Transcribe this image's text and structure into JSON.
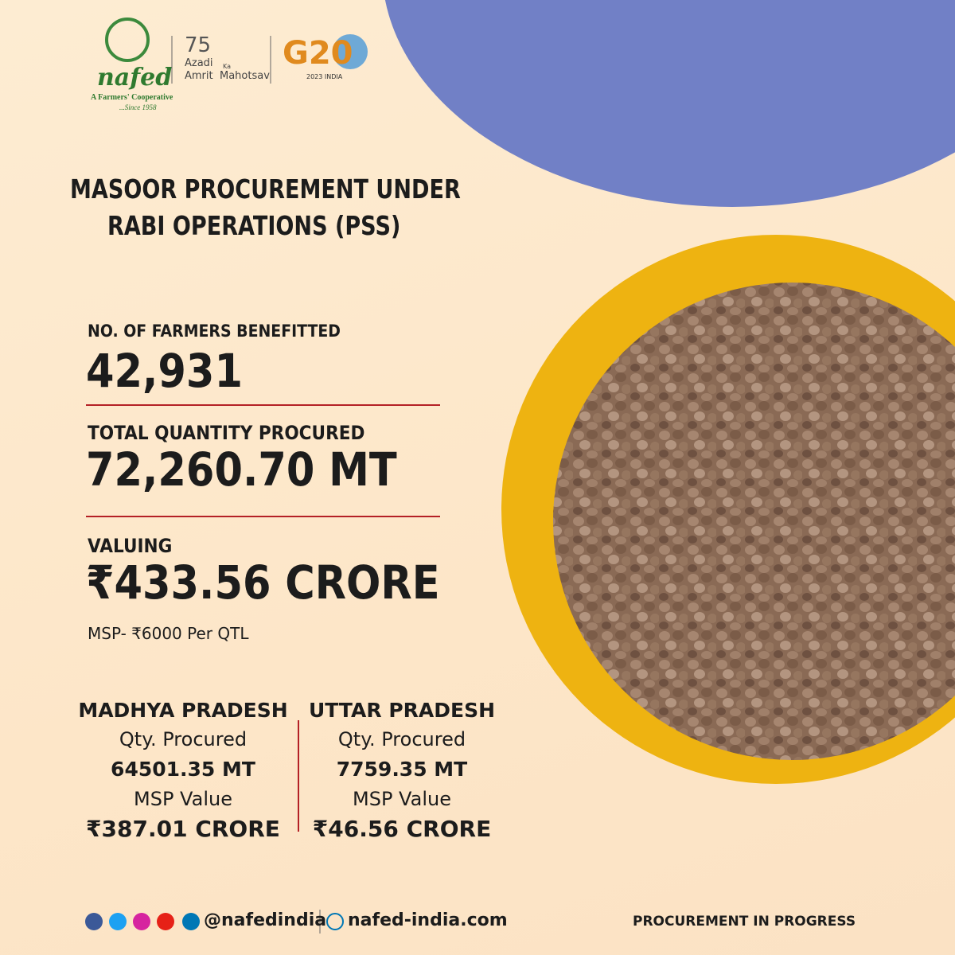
{
  "logos": {
    "nafed": "nafed",
    "nafed_tagline": "A Farmers' Cooperative",
    "nafed_since": "...Since 1958",
    "azadi_number": "75",
    "azadi": [
      "Azadi",
      "Ka",
      "Amrit",
      "Mahotsav"
    ],
    "g20": "G20",
    "g20_sub": "2023 INDIA"
  },
  "title": [
    "MASOOR PROCUREMENT UNDER",
    "RABI OPERATIONS (PSS)"
  ],
  "stats": [
    {
      "label": "NO. OF FARMERS BENEFITTED",
      "value": "42,931"
    },
    {
      "label": "TOTAL QUANTITY PROCURED",
      "value": "72,260.70 MT"
    },
    {
      "label": "VALUING",
      "value": "₹433.56 CRORE",
      "note": "MSP- ₹6000 Per QTL"
    }
  ],
  "states": [
    {
      "name": "MADHYA PRADESH",
      "qty_label": "Qty. Procured",
      "qty": "64501.35 MT",
      "value_label": "MSP Value",
      "value": "₹387.01 CRORE"
    },
    {
      "name": "UTTAR PRADESH",
      "qty_label": "Qty. Procured",
      "qty": "7759.35 MT",
      "value_label": "MSP Value",
      "value": "₹46.56 CRORE"
    }
  ],
  "footer": {
    "handle": "@nafedindia",
    "website": "nafed-india.com",
    "status": "PROCUREMENT IN PROGRESS"
  }
}
